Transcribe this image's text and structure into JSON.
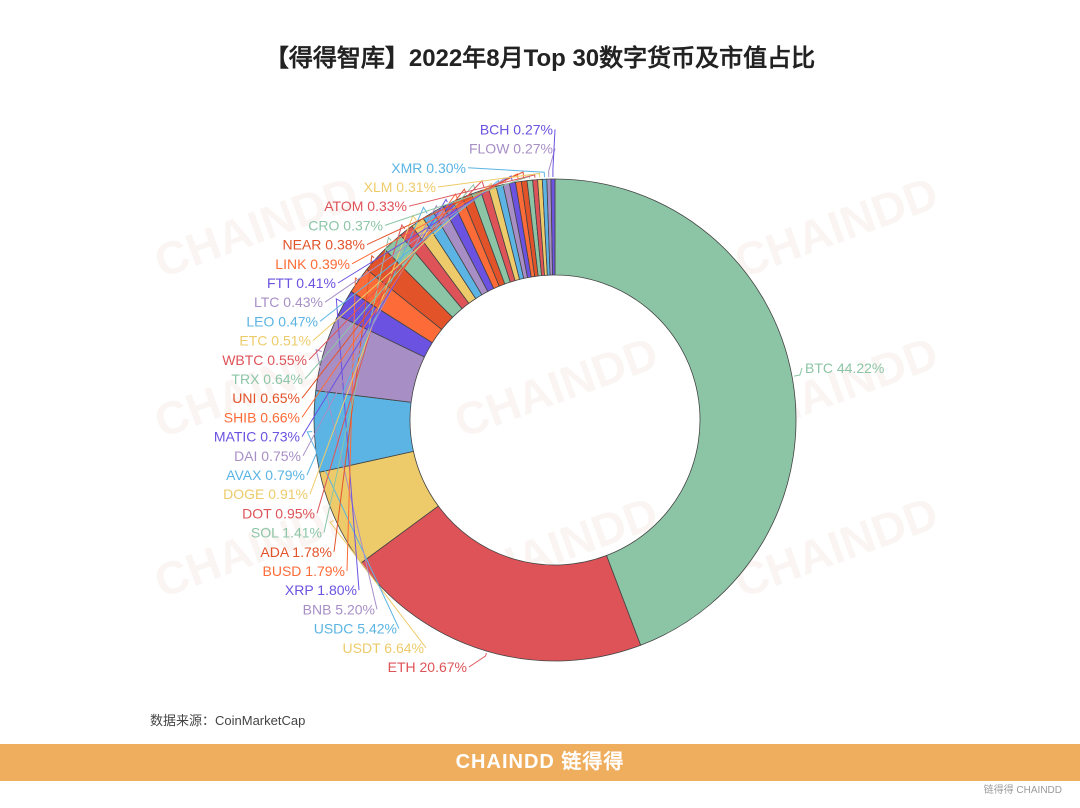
{
  "chart_data": {
    "type": "pie",
    "variant": "donut",
    "title": "【得得智库】2022年8月Top 30数字货币及市值占比",
    "unit": "%",
    "categories": [
      "BTC",
      "ETH",
      "USDT",
      "USDC",
      "BNB",
      "XRP",
      "BUSD",
      "ADA",
      "SOL",
      "DOT",
      "DOGE",
      "AVAX",
      "DAI",
      "MATIC",
      "SHIB",
      "UNI",
      "TRX",
      "WBTC",
      "ETC",
      "LEO",
      "LTC",
      "FTT",
      "LINK",
      "NEAR",
      "CRO",
      "ATOM",
      "XLM",
      "XMR",
      "FLOW",
      "BCH"
    ],
    "values": [
      44.22,
      20.67,
      6.64,
      5.42,
      5.2,
      1.8,
      1.79,
      1.78,
      1.41,
      0.95,
      0.91,
      0.79,
      0.75,
      0.73,
      0.66,
      0.65,
      0.64,
      0.55,
      0.51,
      0.47,
      0.43,
      0.41,
      0.39,
      0.38,
      0.37,
      0.33,
      0.31,
      0.3,
      0.27,
      0.27
    ],
    "labels": [
      "BTC 44.22%",
      "ETH 20.67%",
      "USDT 6.64%",
      "USDC 5.42%",
      "BNB 5.20%",
      "XRP 1.80%",
      "BUSD 1.79%",
      "ADA 1.78%",
      "SOL 1.41%",
      "DOT 0.95%",
      "DOGE 0.91%",
      "AVAX 0.79%",
      "DAI 0.75%",
      "MATIC 0.73%",
      "SHIB 0.66%",
      "UNI 0.65%",
      "TRX 0.64%",
      "WBTC 0.55%",
      "ETC 0.51%",
      "LEO 0.47%",
      "LTC 0.43%",
      "FTT 0.41%",
      "LINK 0.39%",
      "NEAR 0.38%",
      "CRO 0.37%",
      "ATOM 0.33%",
      "XLM 0.31%",
      "XMR 0.30%",
      "FLOW 0.27%",
      "BCH 0.27%"
    ],
    "palette": [
      "#8cc5a6",
      "#de5358",
      "#eecb6a",
      "#5bb4e3",
      "#a78fc6",
      "#6b52e0",
      "#fd6b38",
      "#e2532a"
    ]
  },
  "source": "数据来源：CoinMarketCap",
  "footer": "CHAINDD 链得得",
  "watermark": "CHAINDD",
  "corner_logo": "链得得 CHAINDD"
}
